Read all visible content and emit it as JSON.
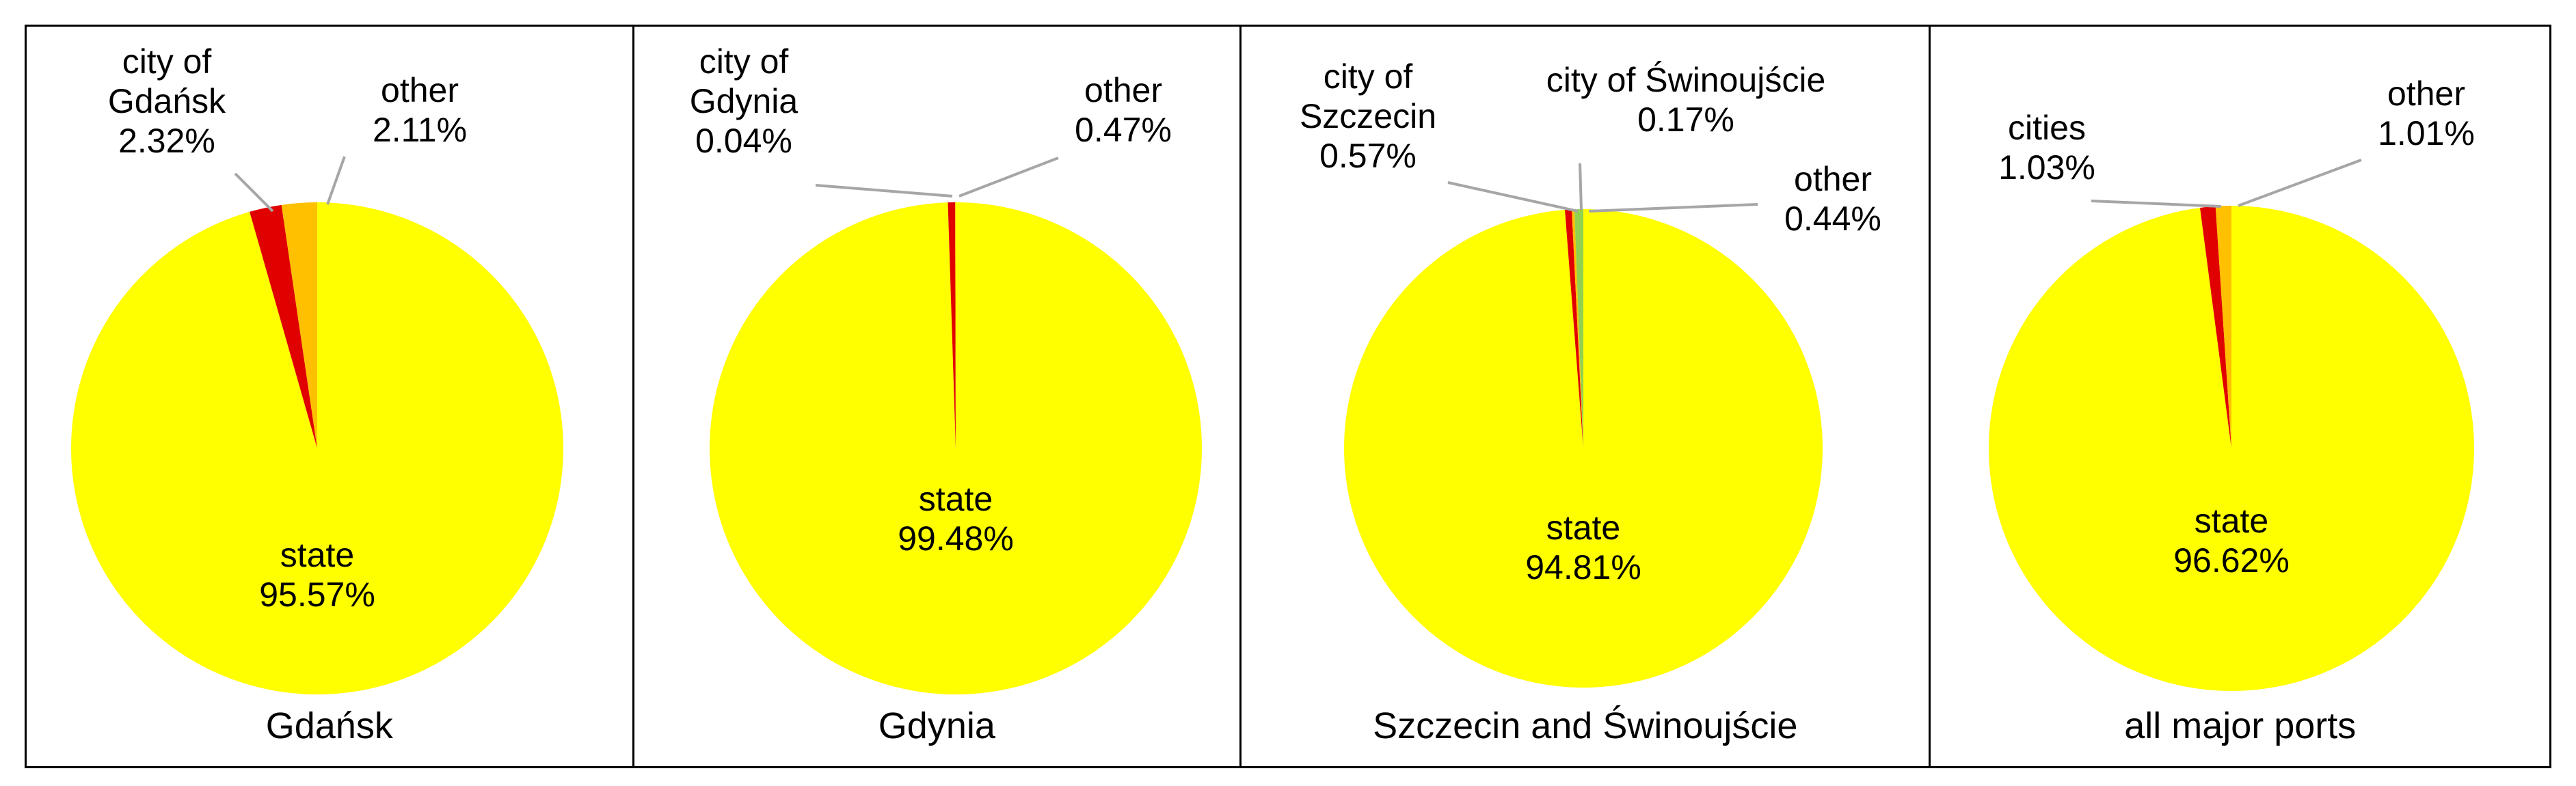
{
  "chart_data": [
    {
      "type": "pie",
      "title": "Gdańsk",
      "slices": [
        {
          "name": "state",
          "value": 95.57,
          "label_lines": [
            "state",
            "95.57%"
          ],
          "color": "#ffff00"
        },
        {
          "name": "city of Gdańsk",
          "value": 2.32,
          "label_lines": [
            "city of",
            "Gdańsk",
            "2.32%"
          ],
          "color": "#ffc000"
        },
        {
          "name": "other",
          "value": 2.11,
          "label_lines": [
            "other",
            "2.11%"
          ],
          "color": "#e00000"
        }
      ]
    },
    {
      "type": "pie",
      "title": "Gdynia",
      "slices": [
        {
          "name": "state",
          "value": 99.48,
          "label_lines": [
            "state",
            "99.48%"
          ],
          "color": "#ffff00"
        },
        {
          "name": "city of Gdynia",
          "value": 0.04,
          "label_lines": [
            "city of",
            "Gdynia",
            "0.04%"
          ],
          "color": "#ffc000"
        },
        {
          "name": "other",
          "value": 0.47,
          "label_lines": [
            "other",
            "0.47%"
          ],
          "color": "#e00000"
        }
      ]
    },
    {
      "type": "pie",
      "title": "Szczecin and Świnoujście",
      "slices": [
        {
          "name": "state",
          "value": 94.81,
          "label_lines": [
            "state",
            "94.81%"
          ],
          "color": "#ffff00"
        },
        {
          "name": "city of Szczecin",
          "value": 0.57,
          "label_lines": [
            "city of",
            "Szczecin",
            "0.57%"
          ],
          "color": "#92d050"
        },
        {
          "name": "city of Świnoujście",
          "value": 0.17,
          "label_lines": [
            "city of Świnoujście",
            "0.17%"
          ],
          "color": "#ffc000"
        },
        {
          "name": "other",
          "value": 0.44,
          "label_lines": [
            "other",
            "0.44%"
          ],
          "color": "#e00000"
        }
      ]
    },
    {
      "type": "pie",
      "title": "all major ports",
      "slices": [
        {
          "name": "state",
          "value": 96.62,
          "label_lines": [
            "state",
            "96.62%"
          ],
          "color": "#ffff00"
        },
        {
          "name": "cities",
          "value": 1.03,
          "label_lines": [
            "cities",
            "1.03%"
          ],
          "color": "#ffc000"
        },
        {
          "name": "other",
          "value": 1.01,
          "label_lines": [
            "other",
            "1.01%"
          ],
          "color": "#e00000"
        }
      ]
    }
  ],
  "leader_line_color": "#a6a6a6",
  "border_color": "#000000"
}
